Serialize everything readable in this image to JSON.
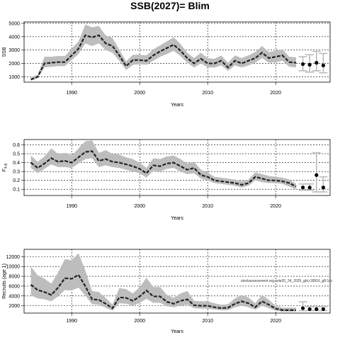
{
  "title": "SSB(2027)= Blim",
  "annotation": "stockassessment.org;sole20_24_2025_gbl,r18916_g8:1cc",
  "colors": {
    "band": "#bdbdbd",
    "line": "#222222",
    "whisker": "#bbbbbb"
  },
  "chart_data": [
    {
      "type": "line",
      "ylabel": "SSB",
      "xlabel": "Years",
      "xlim": [
        1983,
        2028
      ],
      "ylim": [
        600,
        5100
      ],
      "xticks": [
        1990,
        2000,
        2010,
        2020
      ],
      "yticks": [
        1000,
        2000,
        3000,
        4000,
        5000
      ],
      "grid": true,
      "x": [
        1984,
        1985,
        1986,
        1987,
        1988,
        1989,
        1990,
        1991,
        1992,
        1993,
        1994,
        1995,
        1996,
        1997,
        1998,
        1999,
        2000,
        2001,
        2002,
        2003,
        2004,
        2005,
        2006,
        2007,
        2008,
        2009,
        2010,
        2011,
        2012,
        2013,
        2014,
        2015,
        2016,
        2017,
        2018,
        2019,
        2020,
        2021,
        2022,
        2023
      ],
      "series": [
        {
          "values": [
            800,
            1000,
            2000,
            2050,
            2100,
            2100,
            2600,
            3100,
            4100,
            3950,
            4100,
            3500,
            3300,
            2600,
            1800,
            2250,
            2250,
            2200,
            2600,
            2900,
            3150,
            3400,
            2950,
            2400,
            2000,
            2350,
            2000,
            2000,
            2200,
            1700,
            2200,
            2000,
            2200,
            2400,
            2800,
            2400,
            2500,
            2600,
            2100,
            2050
          ]
        },
        {
          "values": [
            700,
            900,
            1700,
            1750,
            1800,
            1800,
            2250,
            2700,
            3500,
            3300,
            3500,
            3000,
            2800,
            2200,
            1500,
            1900,
            1950,
            1900,
            2200,
            2500,
            2700,
            2950,
            2550,
            2050,
            1700,
            2000,
            1700,
            1700,
            1850,
            1450,
            1850,
            1700,
            1850,
            2050,
            2400,
            2050,
            2100,
            2200,
            1750,
            1700
          ]
        },
        {
          "values": [
            950,
            1150,
            2500,
            2500,
            2550,
            2550,
            3100,
            3650,
            4900,
            4700,
            4800,
            4100,
            3900,
            3050,
            2150,
            2650,
            2650,
            2600,
            3050,
            3350,
            3650,
            3950,
            3450,
            2800,
            2400,
            2800,
            2400,
            2350,
            2600,
            2050,
            2600,
            2400,
            2600,
            2850,
            3300,
            2850,
            2950,
            3050,
            2500,
            2450
          ]
        }
      ],
      "forecast": {
        "x": [
          2024,
          2025,
          2026,
          2027
        ],
        "values": [
          1950,
          1900,
          2050,
          1850
        ],
        "low": [
          1450,
          1350,
          1450,
          1300
        ],
        "high": [
          2500,
          2650,
          2900,
          2750
        ]
      }
    },
    {
      "type": "line",
      "ylabel": "F",
      "ylabel_sub": "4-8",
      "xlabel": "Years",
      "xlim": [
        1983,
        2028
      ],
      "ylim": [
        0.03,
        0.66
      ],
      "xticks": [
        1990,
        2000,
        2010,
        2020
      ],
      "yticks": [
        0.1,
        0.2,
        0.3,
        0.4,
        0.5,
        0.6
      ],
      "grid": true,
      "x": [
        1984,
        1985,
        1986,
        1987,
        1988,
        1989,
        1990,
        1991,
        1992,
        1993,
        1994,
        1995,
        1996,
        1997,
        1998,
        1999,
        2000,
        2001,
        2002,
        2003,
        2004,
        2005,
        2006,
        2007,
        2008,
        2009,
        2010,
        2011,
        2012,
        2013,
        2014,
        2015,
        2016,
        2017,
        2018,
        2019,
        2020,
        2021,
        2022,
        2023
      ],
      "series": [
        {
          "values": [
            0.4,
            0.34,
            0.39,
            0.45,
            0.41,
            0.42,
            0.4,
            0.46,
            0.52,
            0.53,
            0.42,
            0.44,
            0.41,
            0.4,
            0.38,
            0.36,
            0.33,
            0.28,
            0.37,
            0.36,
            0.39,
            0.4,
            0.36,
            0.32,
            0.34,
            0.26,
            0.24,
            0.2,
            0.19,
            0.18,
            0.17,
            0.15,
            0.17,
            0.24,
            0.22,
            0.2,
            0.2,
            0.19,
            0.17,
            0.13
          ]
        },
        {
          "values": [
            0.34,
            0.28,
            0.33,
            0.38,
            0.35,
            0.35,
            0.34,
            0.39,
            0.44,
            0.45,
            0.35,
            0.37,
            0.35,
            0.34,
            0.32,
            0.3,
            0.28,
            0.23,
            0.31,
            0.3,
            0.33,
            0.34,
            0.3,
            0.27,
            0.28,
            0.22,
            0.2,
            0.17,
            0.16,
            0.15,
            0.14,
            0.12,
            0.14,
            0.2,
            0.18,
            0.17,
            0.17,
            0.16,
            0.13,
            0.1
          ]
        },
        {
          "values": [
            0.48,
            0.41,
            0.47,
            0.56,
            0.5,
            0.51,
            0.48,
            0.56,
            0.64,
            0.65,
            0.51,
            0.54,
            0.5,
            0.49,
            0.46,
            0.44,
            0.4,
            0.34,
            0.45,
            0.44,
            0.47,
            0.48,
            0.44,
            0.39,
            0.41,
            0.32,
            0.29,
            0.24,
            0.23,
            0.22,
            0.21,
            0.19,
            0.21,
            0.29,
            0.27,
            0.25,
            0.24,
            0.23,
            0.21,
            0.16
          ]
        }
      ],
      "forecast": {
        "x": [
          2024,
          2025,
          2026,
          2027
        ],
        "values": [
          0.12,
          0.12,
          0.26,
          0.12
        ],
        "low": [
          0.09,
          0.09,
          0.07,
          0.07
        ],
        "high": [
          0.16,
          0.16,
          0.51,
          0.24
        ]
      }
    },
    {
      "type": "line",
      "ylabel": "Recruits (age 1)",
      "xlabel": "Years",
      "xlim": [
        1983,
        2028
      ],
      "ylim": [
        500,
        13500
      ],
      "xticks": [
        1990,
        2000,
        2010,
        2020
      ],
      "yticks": [
        2000,
        4000,
        6000,
        8000,
        10000,
        12000
      ],
      "grid": true,
      "x": [
        1984,
        1985,
        1986,
        1987,
        1988,
        1989,
        1990,
        1991,
        1992,
        1993,
        1994,
        1995,
        1996,
        1997,
        1998,
        1999,
        2000,
        2001,
        2002,
        2003,
        2004,
        2005,
        2006,
        2007,
        2008,
        2009,
        2010,
        2011,
        2012,
        2013,
        2014,
        2015,
        2016,
        2017,
        2018,
        2019,
        2020,
        2021,
        2022,
        2023
      ],
      "series": [
        {
          "values": [
            6300,
            5200,
            4800,
            4200,
            5700,
            7600,
            7500,
            8300,
            6000,
            3300,
            3200,
            2400,
            1500,
            3700,
            3600,
            3000,
            3900,
            5100,
            3900,
            3900,
            2800,
            2400,
            3000,
            3300,
            2100,
            2000,
            2000,
            1700,
            1500,
            1600,
            2400,
            2900,
            2500,
            1700,
            2900,
            2200,
            1400,
            1100,
            1100,
            1100
          ]
        },
        {
          "values": [
            4100,
            3500,
            3300,
            2900,
            3900,
            5200,
            5100,
            5700,
            4100,
            2300,
            2200,
            1600,
            1000,
            2500,
            2400,
            2000,
            2600,
            3400,
            2600,
            2600,
            1900,
            1700,
            2000,
            2200,
            1500,
            1400,
            1400,
            1200,
            1100,
            1100,
            1700,
            2000,
            1700,
            1200,
            2000,
            1500,
            1000,
            800,
            800,
            800
          ]
        },
        {
          "values": [
            10000,
            8200,
            7500,
            6500,
            8800,
            11500,
            11300,
            12700,
            9200,
            5000,
            4800,
            3600,
            2200,
            5600,
            5400,
            4500,
            5800,
            7700,
            5800,
            5800,
            4200,
            3600,
            4500,
            5000,
            3000,
            2900,
            2900,
            2500,
            2200,
            2300,
            3500,
            4200,
            3700,
            2500,
            4200,
            3200,
            2000,
            1600,
            1600,
            1600
          ]
        }
      ],
      "forecast": {
        "x": [
          2024,
          2025,
          2026,
          2027
        ],
        "values": [
          1500,
          1300,
          1300,
          1300
        ],
        "low": [
          1000,
          1000,
          1000,
          1000
        ],
        "high": [
          2800,
          1800,
          1800,
          1800
        ]
      }
    }
  ]
}
